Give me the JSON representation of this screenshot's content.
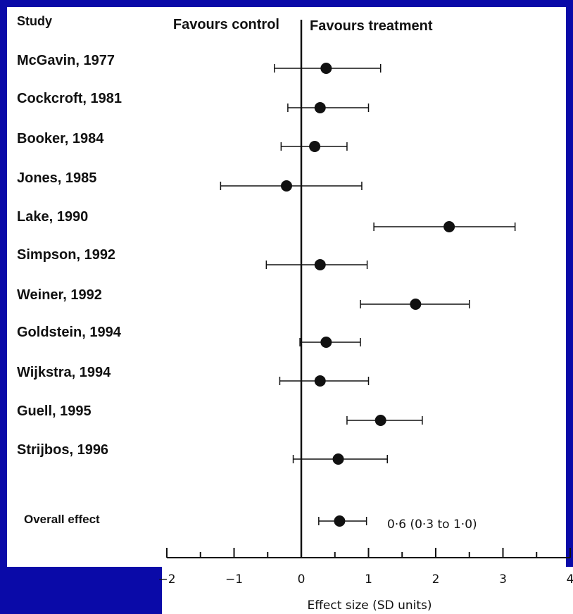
{
  "chart_data": {
    "type": "forest",
    "column_header": "Study",
    "left_header": "Favours control",
    "right_header": "Favours treatment",
    "xlabel": "Effect size (SD units)",
    "xlim": [
      -2,
      4
    ],
    "x_ticks": [
      "-2",
      "-1",
      "0",
      "1",
      "2",
      "3",
      "4"
    ],
    "studies": [
      {
        "label": "McGavin, 1977",
        "effect": 0.37,
        "lower": -0.4,
        "upper": 1.18
      },
      {
        "label": "Cockcroft, 1981",
        "effect": 0.28,
        "lower": -0.2,
        "upper": 1.0
      },
      {
        "label": "Booker, 1984",
        "effect": 0.2,
        "lower": -0.3,
        "upper": 0.68
      },
      {
        "label": "Jones, 1985",
        "effect": -0.22,
        "lower": -1.2,
        "upper": 0.9
      },
      {
        "label": "Lake, 1990",
        "effect": 2.2,
        "lower": 1.08,
        "upper": 3.18
      },
      {
        "label": "Simpson, 1992",
        "effect": 0.28,
        "lower": -0.52,
        "upper": 0.98
      },
      {
        "label": "Weiner, 1992",
        "effect": 1.7,
        "lower": 0.88,
        "upper": 2.5
      },
      {
        "label": "Goldstein, 1994",
        "effect": 0.37,
        "lower": -0.02,
        "upper": 0.88
      },
      {
        "label": "Wijkstra, 1994",
        "effect": 0.28,
        "lower": -0.32,
        "upper": 1.0
      },
      {
        "label": "Guell, 1995",
        "effect": 1.18,
        "lower": 0.68,
        "upper": 1.8
      },
      {
        "label": "Strijbos, 1996",
        "effect": 0.55,
        "lower": -0.12,
        "upper": 1.28
      }
    ],
    "overall": {
      "label": "Overall effect",
      "effect": 0.57,
      "lower": 0.26,
      "upper": 0.97,
      "annotation": "0·6 (0·3 to 1·0)"
    },
    "colors": {
      "frame": "#0a0aa8",
      "ink": "#111111",
      "background": "#ffffff"
    }
  }
}
